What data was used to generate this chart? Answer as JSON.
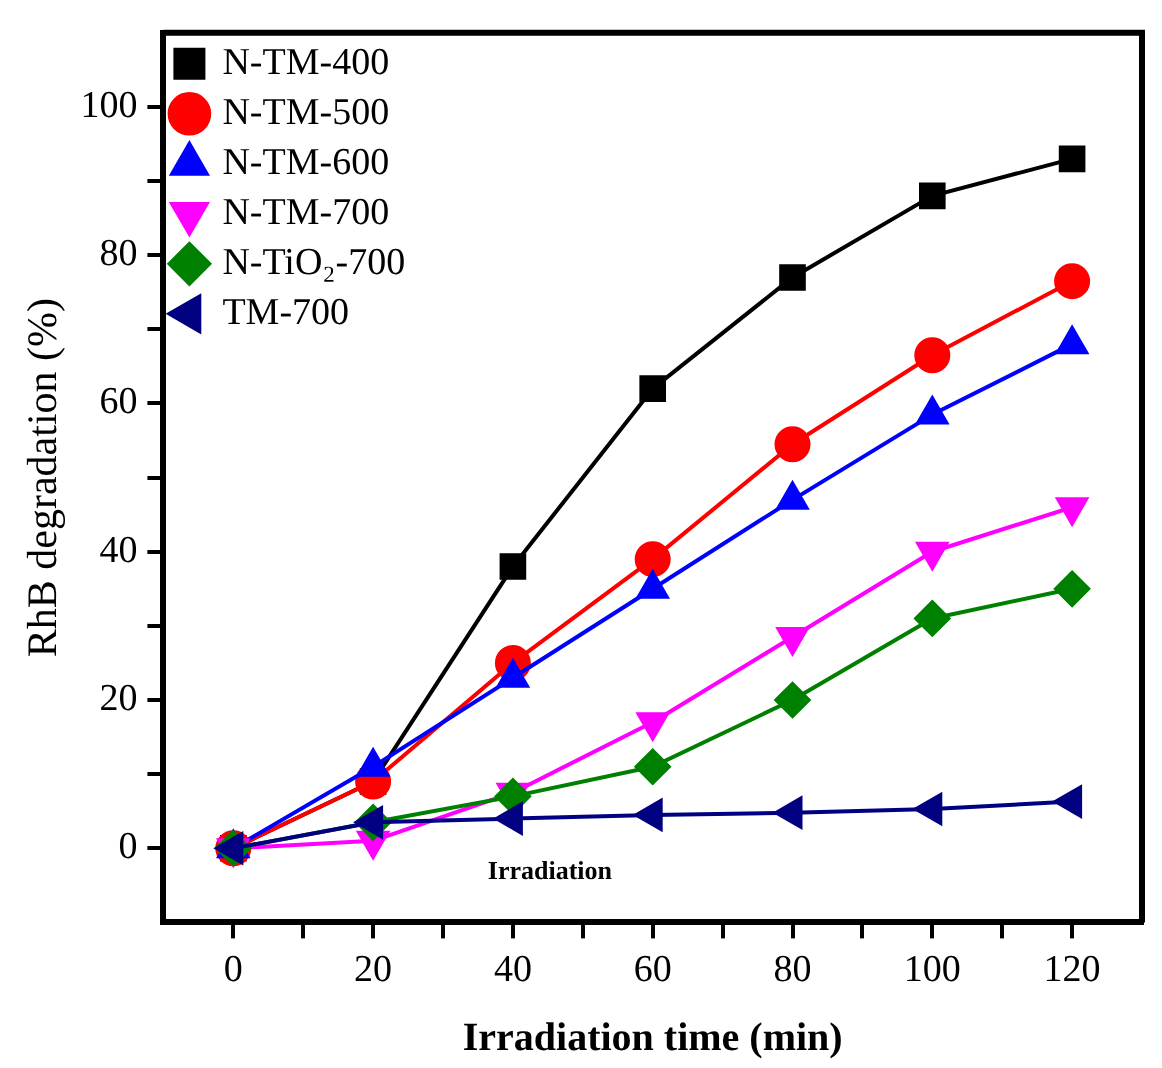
{
  "chart_data": {
    "type": "line",
    "xlabel": "Irradiation time (min)",
    "ylabel": "RhB degradation (%)",
    "annotations": [
      "Irradiation"
    ],
    "x": [
      0,
      20,
      40,
      60,
      80,
      100,
      120
    ],
    "xlim": [
      -10,
      130
    ],
    "xticks": [
      0,
      {
        "value": 10,
        "label": null
      },
      20,
      {
        "value": 30,
        "label": null
      },
      40,
      {
        "value": 50,
        "label": null
      },
      60,
      {
        "value": 70,
        "label": null
      },
      80,
      {
        "value": 90,
        "label": null
      },
      100,
      {
        "value": 110,
        "label": null
      },
      120
    ],
    "ylim": [
      -10,
      110
    ],
    "yticks": [
      0,
      {
        "value": 10,
        "label": null
      },
      20,
      {
        "value": 30,
        "label": null
      },
      40,
      {
        "value": 50,
        "label": null
      },
      60,
      {
        "value": 70,
        "label": null
      },
      80,
      {
        "value": 90,
        "label": null
      },
      100
    ],
    "grid": false,
    "legend": "top left",
    "line_style": "solid",
    "series": [
      {
        "name": "N-TM-400",
        "color": "#000000",
        "marker": "square",
        "values": [
          0,
          9,
          38,
          62,
          77,
          88,
          93
        ]
      },
      {
        "name": "N-TM-500",
        "color": "#ff0000",
        "marker": "circle",
        "values": [
          0,
          9,
          25,
          39,
          54.5,
          66.5,
          76.5
        ]
      },
      {
        "name": "N-TM-600",
        "color": "#0000ff",
        "marker": "triangle",
        "values": [
          0,
          11,
          23,
          35,
          47,
          58.5,
          68
        ]
      },
      {
        "name": "N-TM-700",
        "color": "#ff00ff",
        "marker": "triangle-down",
        "values": [
          0,
          1,
          7.5,
          17,
          28.5,
          40,
          46
        ]
      },
      {
        "name": "N-TiO₂-700",
        "color": "#008000",
        "marker": "diamond",
        "values": [
          0,
          3.5,
          7,
          11,
          20,
          31,
          35
        ]
      },
      {
        "name": "TM-700",
        "color": "#000080",
        "marker": "triangle-left",
        "values": [
          0,
          3.5,
          4,
          4.5,
          4.8,
          5.3,
          6.3
        ]
      }
    ]
  }
}
